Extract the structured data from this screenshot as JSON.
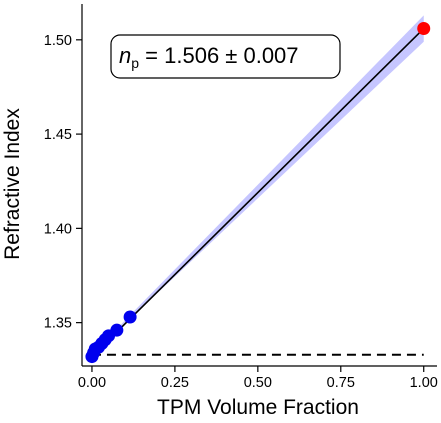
{
  "chart_data": {
    "type": "scatter",
    "xlabel": "TPM Volume Fraction",
    "ylabel": "Refractive Index",
    "xlim": [
      -0.03,
      1.04
    ],
    "ylim": [
      1.327,
      1.519
    ],
    "x_ticks": [
      0.0,
      0.25,
      0.5,
      0.75,
      1.0
    ],
    "x_tick_labels": [
      "0.00",
      "0.25",
      "0.50",
      "0.75",
      "1.00"
    ],
    "y_ticks": [
      1.35,
      1.4,
      1.45,
      1.5
    ],
    "y_tick_labels": [
      "1.35",
      "1.40",
      "1.45",
      "1.50"
    ],
    "grid": false,
    "annotation": {
      "symbol": "n",
      "subscript": "p",
      "text": " = 1.506 ± 0.007"
    },
    "series": [
      {
        "kind": "points",
        "color": "#0000ee",
        "x": [
          0.0,
          0.005,
          0.01,
          0.02,
          0.03,
          0.04,
          0.05,
          0.075,
          0.115
        ],
        "y": [
          1.332,
          1.334,
          1.336,
          1.337,
          1.339,
          1.341,
          1.343,
          1.346,
          1.353
        ]
      },
      {
        "kind": "points",
        "color": "#ff0000",
        "x": [
          1.0
        ],
        "y": [
          1.506
        ]
      },
      {
        "kind": "fit-line",
        "color": "#000000",
        "x": [
          0.0,
          1.0
        ],
        "y": [
          1.332,
          1.506
        ]
      },
      {
        "kind": "confidence-band",
        "color": "#8080ff",
        "x": [
          0.0,
          0.115,
          1.0
        ],
        "y_low": [
          1.331,
          1.352,
          1.499
        ],
        "y_high": [
          1.333,
          1.354,
          1.513
        ]
      },
      {
        "kind": "reference-line",
        "style": "dashed",
        "color": "#000000",
        "x": [
          0.0,
          1.0
        ],
        "y": [
          1.333,
          1.333
        ]
      }
    ]
  }
}
